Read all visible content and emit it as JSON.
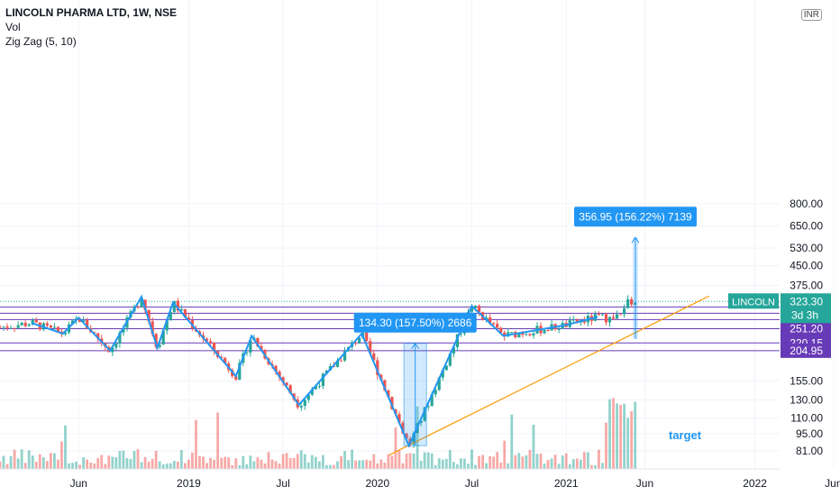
{
  "legend": {
    "title": "LINCOLN PHARMA LTD, 1W, NSE",
    "indicator_vol": "Vol",
    "indicator_zigzag": "Zig Zag (5, 10)"
  },
  "unit": "INR",
  "colors": {
    "up": "#26a69a",
    "down": "#ef5350",
    "zigzag": "#2196f3",
    "trendline": "#ff9800",
    "level": "#673ab7",
    "last_price": "#26a69a",
    "measure": "#2196f3"
  },
  "chart_data": {
    "type": "candlestick",
    "title": "LINCOLN PHARMA LTD, 1W, NSE",
    "y_scale": "log",
    "ylim": [
      75,
      800
    ],
    "y_ticks": [
      "800.00",
      "650.00",
      "530.00",
      "450.00",
      "375.00",
      "155.00",
      "130.00",
      "110.00",
      "95.00",
      "81.00"
    ],
    "x_ticks": [
      "Jun",
      "2019",
      "Jul",
      "2020",
      "Jul",
      "2021",
      "Jun",
      "2022",
      "Jun"
    ],
    "last_price": {
      "symbol": "LINCOLN",
      "value": "323.30",
      "countdown": "3d 3h"
    },
    "horizontal_levels": [
      "307.40",
      "289.95",
      "273.50",
      "251.20",
      "220.15",
      "204.95"
    ],
    "zigzag_points": [
      {
        "date": "2018-03",
        "price": 265
      },
      {
        "date": "2018-05",
        "price": 240
      },
      {
        "date": "2018-06",
        "price": 278
      },
      {
        "date": "2018-08",
        "price": 205
      },
      {
        "date": "2018-10",
        "price": 338
      },
      {
        "date": "2018-11",
        "price": 210
      },
      {
        "date": "2018-12",
        "price": 320
      },
      {
        "date": "2019-04",
        "price": 162
      },
      {
        "date": "2019-05",
        "price": 235
      },
      {
        "date": "2019-08",
        "price": 124
      },
      {
        "date": "2019-12",
        "price": 240
      },
      {
        "date": "2020-03",
        "price": 85
      },
      {
        "date": "2020-07",
        "price": 310
      },
      {
        "date": "2020-09",
        "price": 235
      },
      {
        "date": "2021-01",
        "price": 260
      },
      {
        "date": "2021-03",
        "price": 280
      }
    ],
    "measurements": [
      {
        "label": "134.30 (157.50%) 2686",
        "from": 85,
        "to": 219.3
      },
      {
        "label": "356.95 (156.22%) 7139",
        "from": 228.5,
        "to": 585
      }
    ],
    "annotation": "target"
  }
}
